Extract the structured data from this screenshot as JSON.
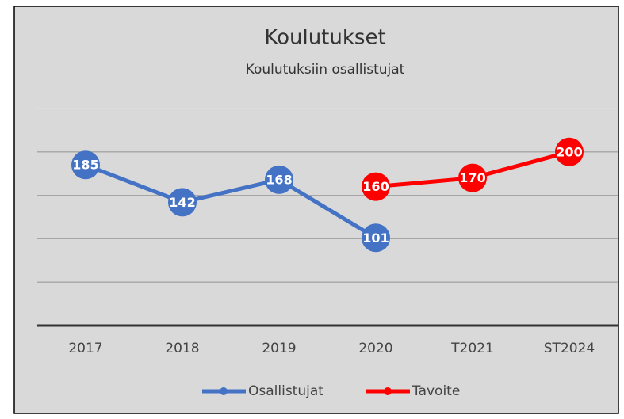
{
  "chart_data": {
    "type": "line",
    "title": "Koulutukset",
    "subtitle": "Koulutuksiin osallistujat",
    "categories": [
      "2017",
      "2018",
      "2019",
      "2020",
      "T2021",
      "ST2024"
    ],
    "series": [
      {
        "name": "Osallistujat",
        "color": "#4472c4",
        "values": [
          185,
          142,
          168,
          101,
          null,
          null
        ]
      },
      {
        "name": "Tavoite",
        "color": "#ff0000",
        "values": [
          null,
          null,
          null,
          160,
          170,
          200
        ]
      }
    ],
    "ylim": [
      0,
      250
    ],
    "yticks": [
      0,
      50,
      100,
      150,
      200,
      250
    ],
    "grid": true,
    "legend": "bottom"
  }
}
